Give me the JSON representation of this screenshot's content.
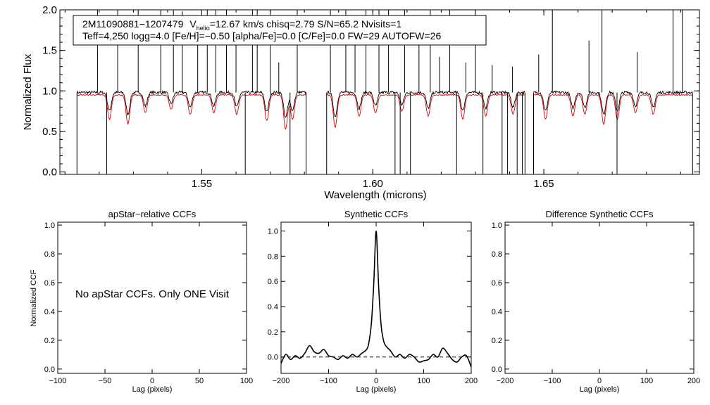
{
  "colors": {
    "observed": "#000000",
    "model": "#e00000",
    "axes": "#000000"
  },
  "header": {
    "star_id": "2M11090881−1207479",
    "v_prefix": "V",
    "v_sub": "helio",
    "v_rest": "=12.67 km/s  chisq=2.79  S/N=65.2  Nvisits=1",
    "line2": "Teff=4,250 logg=4.0 [Fe/H]=−0.50 [alpha/Fe]=0.0 [C/Fe]=0.0 FW=29 AUTOFW=26"
  },
  "chart_data": [
    {
      "id": "spectrum",
      "type": "line",
      "title": "",
      "xlabel": "Wavelength (microns)",
      "ylabel": "Normalized Flux",
      "xlim": [
        1.5085,
        1.6955
      ],
      "ylim": [
        -0.03,
        2.0
      ],
      "xticks": [
        1.55,
        1.6,
        1.65
      ],
      "xtick_labels": [
        "1.55",
        "1.60",
        "1.65"
      ],
      "yticks": [
        0.0,
        0.5,
        1.0,
        1.5,
        2.0
      ],
      "ytick_labels": [
        "0.0",
        "0.5",
        "1.0",
        "1.5",
        "2.0"
      ],
      "segments": [
        [
          1.5135,
          1.5805
        ],
        [
          1.5865,
          1.6445
        ],
        [
          1.647,
          1.6935
        ]
      ],
      "series": [
        {
          "name": "observed",
          "color": "#000000",
          "level": 0.98,
          "noise": 0.035
        },
        {
          "name": "model",
          "color": "#e00000",
          "level": 0.95,
          "noise": 0.012
        }
      ],
      "absorption_lines": [
        {
          "x": 1.523,
          "depth": 0.3
        },
        {
          "x": 1.5284,
          "depth": 0.36
        },
        {
          "x": 1.5335,
          "depth": 0.22
        },
        {
          "x": 1.541,
          "depth": 0.18
        },
        {
          "x": 1.5466,
          "depth": 0.24
        },
        {
          "x": 1.5535,
          "depth": 0.22
        },
        {
          "x": 1.5602,
          "depth": 0.24
        },
        {
          "x": 1.569,
          "depth": 0.32
        },
        {
          "x": 1.5745,
          "depth": 0.42
        },
        {
          "x": 1.5765,
          "depth": 0.3
        },
        {
          "x": 1.589,
          "depth": 0.4
        },
        {
          "x": 1.596,
          "depth": 0.26
        },
        {
          "x": 1.6008,
          "depth": 0.22
        },
        {
          "x": 1.6085,
          "depth": 0.2
        },
        {
          "x": 1.6162,
          "depth": 0.26
        },
        {
          "x": 1.6263,
          "depth": 0.3
        },
        {
          "x": 1.633,
          "depth": 0.26
        },
        {
          "x": 1.641,
          "depth": 0.24
        },
        {
          "x": 1.6505,
          "depth": 0.3
        },
        {
          "x": 1.6585,
          "depth": 0.26
        },
        {
          "x": 1.662,
          "depth": 0.24
        },
        {
          "x": 1.6675,
          "depth": 0.36
        },
        {
          "x": 1.6715,
          "depth": 0.3
        },
        {
          "x": 1.6768,
          "depth": 0.22
        },
        {
          "x": 1.682,
          "depth": 0.24
        }
      ],
      "spikes": [
        {
          "x": 1.5195,
          "to": 2.0
        },
        {
          "x": 1.5222,
          "to": -0.03
        },
        {
          "x": 1.5254,
          "to": 2.0
        },
        {
          "x": 1.5314,
          "to": 2.0
        },
        {
          "x": 1.538,
          "to": 2.0
        },
        {
          "x": 1.5417,
          "to": 2.0
        },
        {
          "x": 1.5443,
          "to": 1.98
        },
        {
          "x": 1.5488,
          "to": 1.6
        },
        {
          "x": 1.5516,
          "to": 2.0
        },
        {
          "x": 1.5541,
          "to": 2.0
        },
        {
          "x": 1.5572,
          "to": 2.0
        },
        {
          "x": 1.56,
          "to": 1.78
        },
        {
          "x": 1.5627,
          "to": -0.03
        },
        {
          "x": 1.5648,
          "to": 2.0
        },
        {
          "x": 1.5662,
          "to": 2.0
        },
        {
          "x": 1.57,
          "to": 2.0
        },
        {
          "x": 1.5725,
          "to": 1.35
        },
        {
          "x": 1.5758,
          "to": -0.03
        },
        {
          "x": 1.5779,
          "to": 2.0
        },
        {
          "x": 1.5876,
          "to": 2.0
        },
        {
          "x": 1.5921,
          "to": 2.0
        },
        {
          "x": 1.5948,
          "to": 1.78
        },
        {
          "x": 1.598,
          "to": 2.0
        },
        {
          "x": 1.6018,
          "to": 2.0
        },
        {
          "x": 1.6046,
          "to": 2.0
        },
        {
          "x": 1.6065,
          "to": -0.03
        },
        {
          "x": 1.608,
          "to": -0.03
        },
        {
          "x": 1.6093,
          "to": 2.0
        },
        {
          "x": 1.611,
          "to": -0.03
        },
        {
          "x": 1.6135,
          "to": 1.72
        },
        {
          "x": 1.6168,
          "to": 2.0
        },
        {
          "x": 1.6195,
          "to": 1.42
        },
        {
          "x": 1.6225,
          "to": 2.0
        },
        {
          "x": 1.6245,
          "to": -0.03
        },
        {
          "x": 1.6272,
          "to": 1.35
        },
        {
          "x": 1.63,
          "to": 2.0
        },
        {
          "x": 1.6322,
          "to": -0.03
        },
        {
          "x": 1.6349,
          "to": 1.32
        },
        {
          "x": 1.6378,
          "to": -0.03
        },
        {
          "x": 1.6394,
          "to": -0.03
        },
        {
          "x": 1.6408,
          "to": 1.3
        },
        {
          "x": 1.6422,
          "to": -0.03
        },
        {
          "x": 1.6437,
          "to": -0.03
        },
        {
          "x": 1.6485,
          "to": 1.45
        },
        {
          "x": 1.6525,
          "to": 2.0
        },
        {
          "x": 1.6632,
          "to": 1.62
        },
        {
          "x": 1.667,
          "to": 2.0
        },
        {
          "x": 1.6714,
          "to": -0.03
        },
        {
          "x": 1.6773,
          "to": 1.48
        },
        {
          "x": 1.6878,
          "to": 2.0
        },
        {
          "x": 1.6905,
          "to": 2.0
        }
      ]
    },
    {
      "id": "apstar-ccf",
      "type": "line",
      "title": "apStar−relative CCFs",
      "xlabel": "Lag (pixels)",
      "ylabel": "Normalized CCF",
      "xlim": [
        -100,
        100
      ],
      "ylim": [
        -0.03,
        1.02
      ],
      "xticks": [
        -100,
        -50,
        0,
        50,
        100
      ],
      "xtick_labels": [
        "−100",
        "−50",
        "0",
        "50",
        "100"
      ],
      "yticks": [
        0.0,
        0.2,
        0.4,
        0.6,
        0.8,
        1.0
      ],
      "ytick_labels": [
        "0.0",
        "0.2",
        "0.4",
        "0.6",
        "0.8",
        "1.0"
      ],
      "annotation": "No apStar CCFs.  Only ONE Visit",
      "series": []
    },
    {
      "id": "synthetic-ccf",
      "type": "line",
      "title": "Synthetic CCFs",
      "xlabel": "Lag (pixels)",
      "ylabel": "",
      "xlim": [
        -200,
        200
      ],
      "ylim": [
        -0.13,
        1.07
      ],
      "xticks": [
        -200,
        -100,
        0,
        100,
        200
      ],
      "xtick_labels": [
        "−200",
        "−100",
        "0",
        "100",
        "200"
      ],
      "yticks": [
        0.0,
        0.2,
        0.4,
        0.6,
        0.8,
        1.0
      ],
      "ytick_labels": [
        "0.0",
        "0.2",
        "0.4",
        "0.6",
        "0.8",
        "1.0"
      ],
      "zero_line": 0.0,
      "series": [
        {
          "name": "ccf",
          "color": "#000000",
          "x": [
            -200,
            -190,
            -180,
            -170,
            -160,
            -150,
            -140,
            -130,
            -120,
            -110,
            -100,
            -90,
            -80,
            -70,
            -60,
            -50,
            -40,
            -30,
            -20,
            -15,
            -10,
            -5,
            0,
            5,
            10,
            15,
            20,
            30,
            40,
            50,
            60,
            70,
            80,
            90,
            100,
            110,
            120,
            130,
            140,
            150,
            160,
            170,
            180,
            190,
            200
          ],
          "y": [
            -0.05,
            0.02,
            -0.02,
            0.01,
            -0.01,
            0.03,
            0.09,
            0.04,
            0.03,
            0.06,
            0.01,
            0.0,
            -0.02,
            0.01,
            -0.01,
            0.02,
            0.0,
            0.03,
            0.06,
            0.12,
            0.27,
            0.58,
            1.0,
            0.58,
            0.27,
            0.14,
            0.09,
            0.05,
            0.0,
            0.02,
            -0.01,
            0.02,
            0.0,
            -0.04,
            -0.03,
            -0.02,
            0.02,
            0.0,
            0.07,
            0.03,
            -0.02,
            -0.04,
            0.0,
            0.01,
            -0.08
          ]
        }
      ]
    },
    {
      "id": "difference-ccf",
      "type": "line",
      "title": "Difference Synthetic CCFs",
      "xlabel": "Lag (pixels)",
      "ylabel": "",
      "xlim": [
        -200,
        200
      ],
      "ylim": [
        -0.03,
        1.02
      ],
      "xticks": [
        -200,
        -100,
        0,
        100,
        200
      ],
      "xtick_labels": [
        "−200",
        "−100",
        "0",
        "100",
        "200"
      ],
      "yticks": [
        0.0,
        0.2,
        0.4,
        0.6,
        0.8,
        1.0
      ],
      "ytick_labels": [
        "0.0",
        "0.2",
        "0.4",
        "0.6",
        "0.8",
        "1.0"
      ],
      "series": []
    }
  ]
}
